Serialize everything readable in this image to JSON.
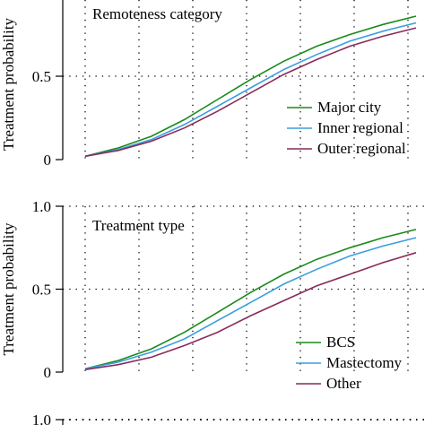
{
  "chart_data": [
    {
      "type": "line",
      "title": "Remoteness category",
      "xlabel": "",
      "ylabel": "Treatment probability",
      "ylim": [
        0,
        1
      ],
      "y_ticks": [
        "0",
        "0.5"
      ],
      "grid": true,
      "legend_position": "bottom-right",
      "x": [
        0,
        0.1,
        0.2,
        0.3,
        0.4,
        0.5,
        0.6,
        0.7,
        0.8,
        0.9,
        1.0
      ],
      "series": [
        {
          "name": "Major city",
          "color": "#1a8a1a",
          "values": [
            0.02,
            0.07,
            0.14,
            0.24,
            0.36,
            0.48,
            0.59,
            0.68,
            0.75,
            0.81,
            0.86
          ]
        },
        {
          "name": "Inner regional",
          "color": "#3b9ee0",
          "values": [
            0.02,
            0.06,
            0.12,
            0.21,
            0.32,
            0.43,
            0.54,
            0.63,
            0.71,
            0.77,
            0.82
          ]
        },
        {
          "name": "Outer regional",
          "color": "#8a2a5a",
          "values": [
            0.02,
            0.055,
            0.11,
            0.19,
            0.29,
            0.4,
            0.51,
            0.6,
            0.68,
            0.74,
            0.79
          ]
        }
      ]
    },
    {
      "type": "line",
      "title": "Treatment type",
      "xlabel": "",
      "ylabel": "Treatment probability",
      "ylim": [
        0,
        1
      ],
      "y_ticks": [
        "0",
        "0.5",
        "1.0"
      ],
      "grid": true,
      "legend_position": "bottom-right",
      "x": [
        0,
        0.1,
        0.2,
        0.3,
        0.4,
        0.5,
        0.6,
        0.7,
        0.8,
        0.9,
        1.0
      ],
      "series": [
        {
          "name": "BCS",
          "color": "#1a8a1a",
          "values": [
            0.02,
            0.07,
            0.14,
            0.24,
            0.36,
            0.48,
            0.59,
            0.68,
            0.75,
            0.81,
            0.86
          ]
        },
        {
          "name": "Mastectomy",
          "color": "#3b9ee0",
          "values": [
            0.02,
            0.06,
            0.12,
            0.2,
            0.31,
            0.42,
            0.53,
            0.62,
            0.7,
            0.76,
            0.81
          ]
        },
        {
          "name": "Other",
          "color": "#8a2a5a",
          "values": [
            0.015,
            0.045,
            0.09,
            0.16,
            0.24,
            0.34,
            0.43,
            0.52,
            0.59,
            0.66,
            0.72
          ]
        }
      ]
    },
    {
      "type": "line",
      "title": "",
      "y_ticks": [
        "1.0"
      ],
      "x": [],
      "series": []
    }
  ]
}
